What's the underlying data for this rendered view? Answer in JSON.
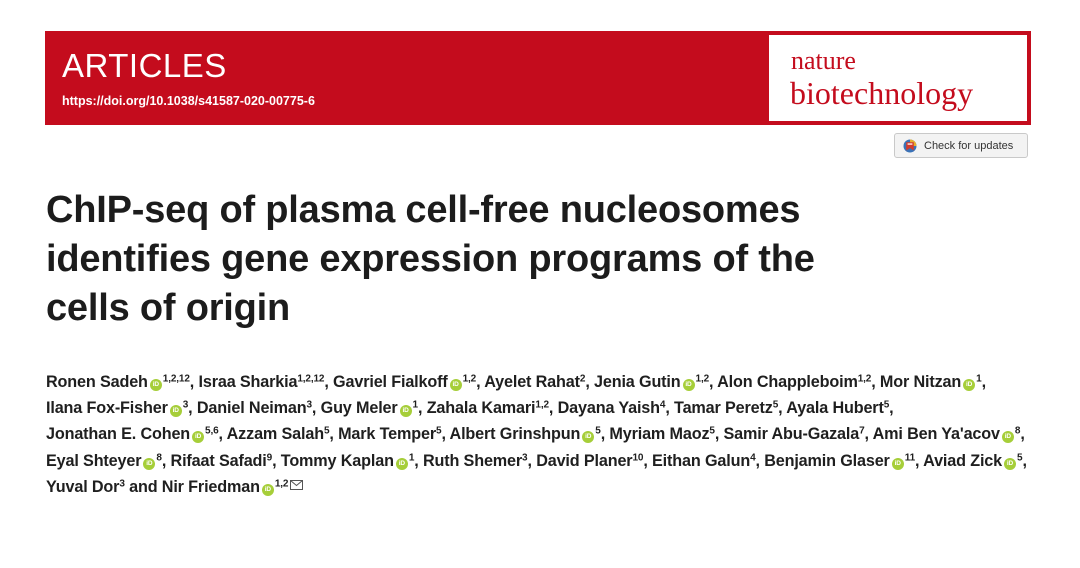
{
  "header": {
    "section": "ARTICLES",
    "doi": "https://doi.org/10.1038/s41587-020-00775-6",
    "journal_line1": "nature",
    "journal_line2": "biotechnology"
  },
  "updates": {
    "label": "Check for updates",
    "icon": "crossmark-icon"
  },
  "article": {
    "title_lines": [
      "ChIP-seq of plasma cell-free nucleosomes",
      "identifies gene expression programs of the",
      "cells of origin"
    ]
  },
  "authors": [
    {
      "name": "Ronen Sadeh",
      "orcid": true,
      "aff": "1,2,12"
    },
    {
      "name": "Israa Sharkia",
      "orcid": false,
      "aff": "1,2,12"
    },
    {
      "name": "Gavriel Fialkoff",
      "orcid": true,
      "aff": "1,2"
    },
    {
      "name": "Ayelet Rahat",
      "orcid": false,
      "aff": "2"
    },
    {
      "name": "Jenia Gutin",
      "orcid": true,
      "aff": "1,2"
    },
    {
      "name": "Alon Chappleboim",
      "orcid": false,
      "aff": "1,2"
    },
    {
      "name": "Mor Nitzan",
      "orcid": true,
      "aff": "1"
    },
    {
      "name": "Ilana Fox-Fisher",
      "orcid": true,
      "aff": "3"
    },
    {
      "name": "Daniel Neiman",
      "orcid": false,
      "aff": "3"
    },
    {
      "name": "Guy Meler",
      "orcid": true,
      "aff": "1"
    },
    {
      "name": "Zahala Kamari",
      "orcid": false,
      "aff": "1,2"
    },
    {
      "name": "Dayana Yaish",
      "orcid": false,
      "aff": "4"
    },
    {
      "name": "Tamar Peretz",
      "orcid": false,
      "aff": "5"
    },
    {
      "name": "Ayala Hubert",
      "orcid": false,
      "aff": "5"
    },
    {
      "name": "Jonathan E. Cohen",
      "orcid": true,
      "aff": "5,6"
    },
    {
      "name": "Azzam Salah",
      "orcid": false,
      "aff": "5"
    },
    {
      "name": "Mark Temper",
      "orcid": false,
      "aff": "5"
    },
    {
      "name": "Albert Grinshpun",
      "orcid": true,
      "aff": "5"
    },
    {
      "name": "Myriam Maoz",
      "orcid": false,
      "aff": "5"
    },
    {
      "name": "Samir Abu-Gazala",
      "orcid": false,
      "aff": "7"
    },
    {
      "name": "Ami Ben Ya'acov",
      "orcid": true,
      "aff": "8"
    },
    {
      "name": "Eyal Shteyer",
      "orcid": true,
      "aff": "8"
    },
    {
      "name": "Rifaat Safadi",
      "orcid": false,
      "aff": "9"
    },
    {
      "name": "Tommy Kaplan",
      "orcid": true,
      "aff": "1"
    },
    {
      "name": "Ruth Shemer",
      "orcid": false,
      "aff": "3"
    },
    {
      "name": "David Planer",
      "orcid": false,
      "aff": "10"
    },
    {
      "name": "Eithan Galun",
      "orcid": false,
      "aff": "4"
    },
    {
      "name": "Benjamin Glaser",
      "orcid": true,
      "aff": "11"
    },
    {
      "name": "Aviad Zick",
      "orcid": true,
      "aff": "5"
    },
    {
      "name": "Yuval Dor",
      "orcid": false,
      "aff": "3"
    },
    {
      "name": "Nir Friedman",
      "orcid": true,
      "aff": "1,2",
      "corresponding": true
    }
  ],
  "author_separator": ", ",
  "last_separator": " and ",
  "orcid_glyph": "iD",
  "colors": {
    "banner": "#c40c1d",
    "orcid": "#a6ce39"
  }
}
